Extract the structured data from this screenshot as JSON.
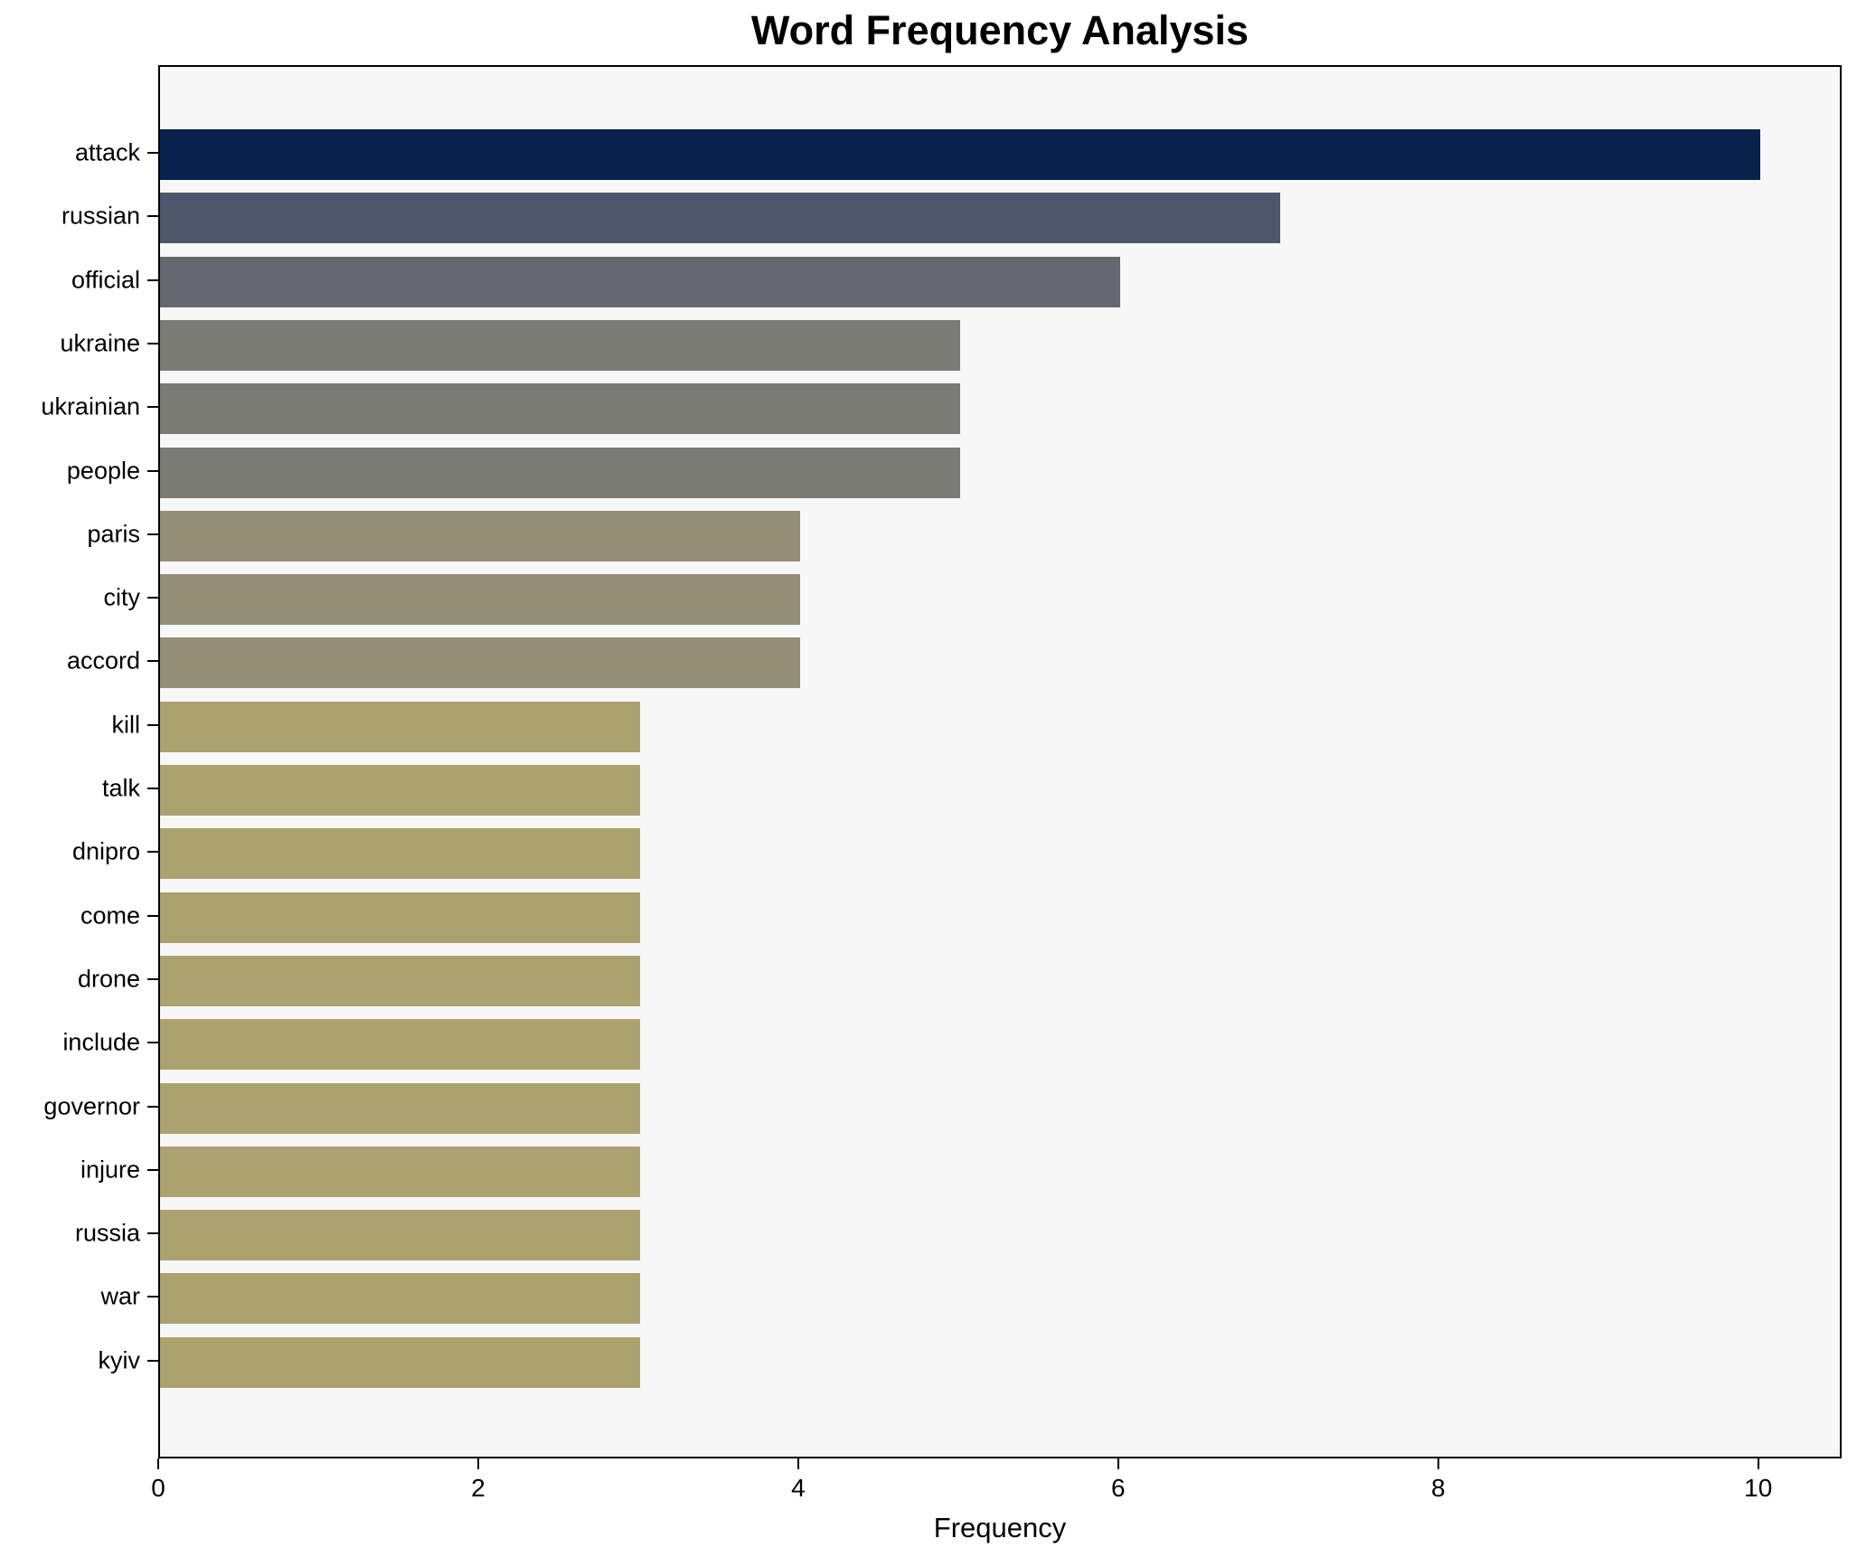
{
  "chart_data": {
    "type": "bar",
    "orientation": "horizontal",
    "title": "Word Frequency Analysis",
    "xlabel": "Frequency",
    "ylabel": "",
    "categories": [
      "attack",
      "russian",
      "official",
      "ukraine",
      "ukrainian",
      "people",
      "paris",
      "city",
      "accord",
      "kill",
      "talk",
      "dnipro",
      "come",
      "drone",
      "include",
      "governor",
      "injure",
      "russia",
      "war",
      "kyiv"
    ],
    "values": [
      10,
      7,
      6,
      5,
      5,
      5,
      4,
      4,
      4,
      3,
      3,
      3,
      3,
      3,
      3,
      3,
      3,
      3,
      3,
      3
    ],
    "bar_colors": [
      "#07234b",
      "#4e566b",
      "#65686f",
      "#7b7b76",
      "#7b7b76",
      "#7b7b76",
      "#949076",
      "#949076",
      "#949076",
      "#aca26f",
      "#aca26f",
      "#aca26f",
      "#aca26f",
      "#aca26f",
      "#aca26f",
      "#aca26f",
      "#aca26f",
      "#aca26f",
      "#aca26f",
      "#aca26f"
    ],
    "xticks": [
      0,
      2,
      4,
      6,
      8,
      10
    ],
    "xlim": [
      0,
      10.51
    ],
    "grid": false,
    "legend": null,
    "plot_background": "#f7f7f7",
    "figure_background": "#ffffff",
    "spine_color": "#000000",
    "text_color": "#000000"
  }
}
